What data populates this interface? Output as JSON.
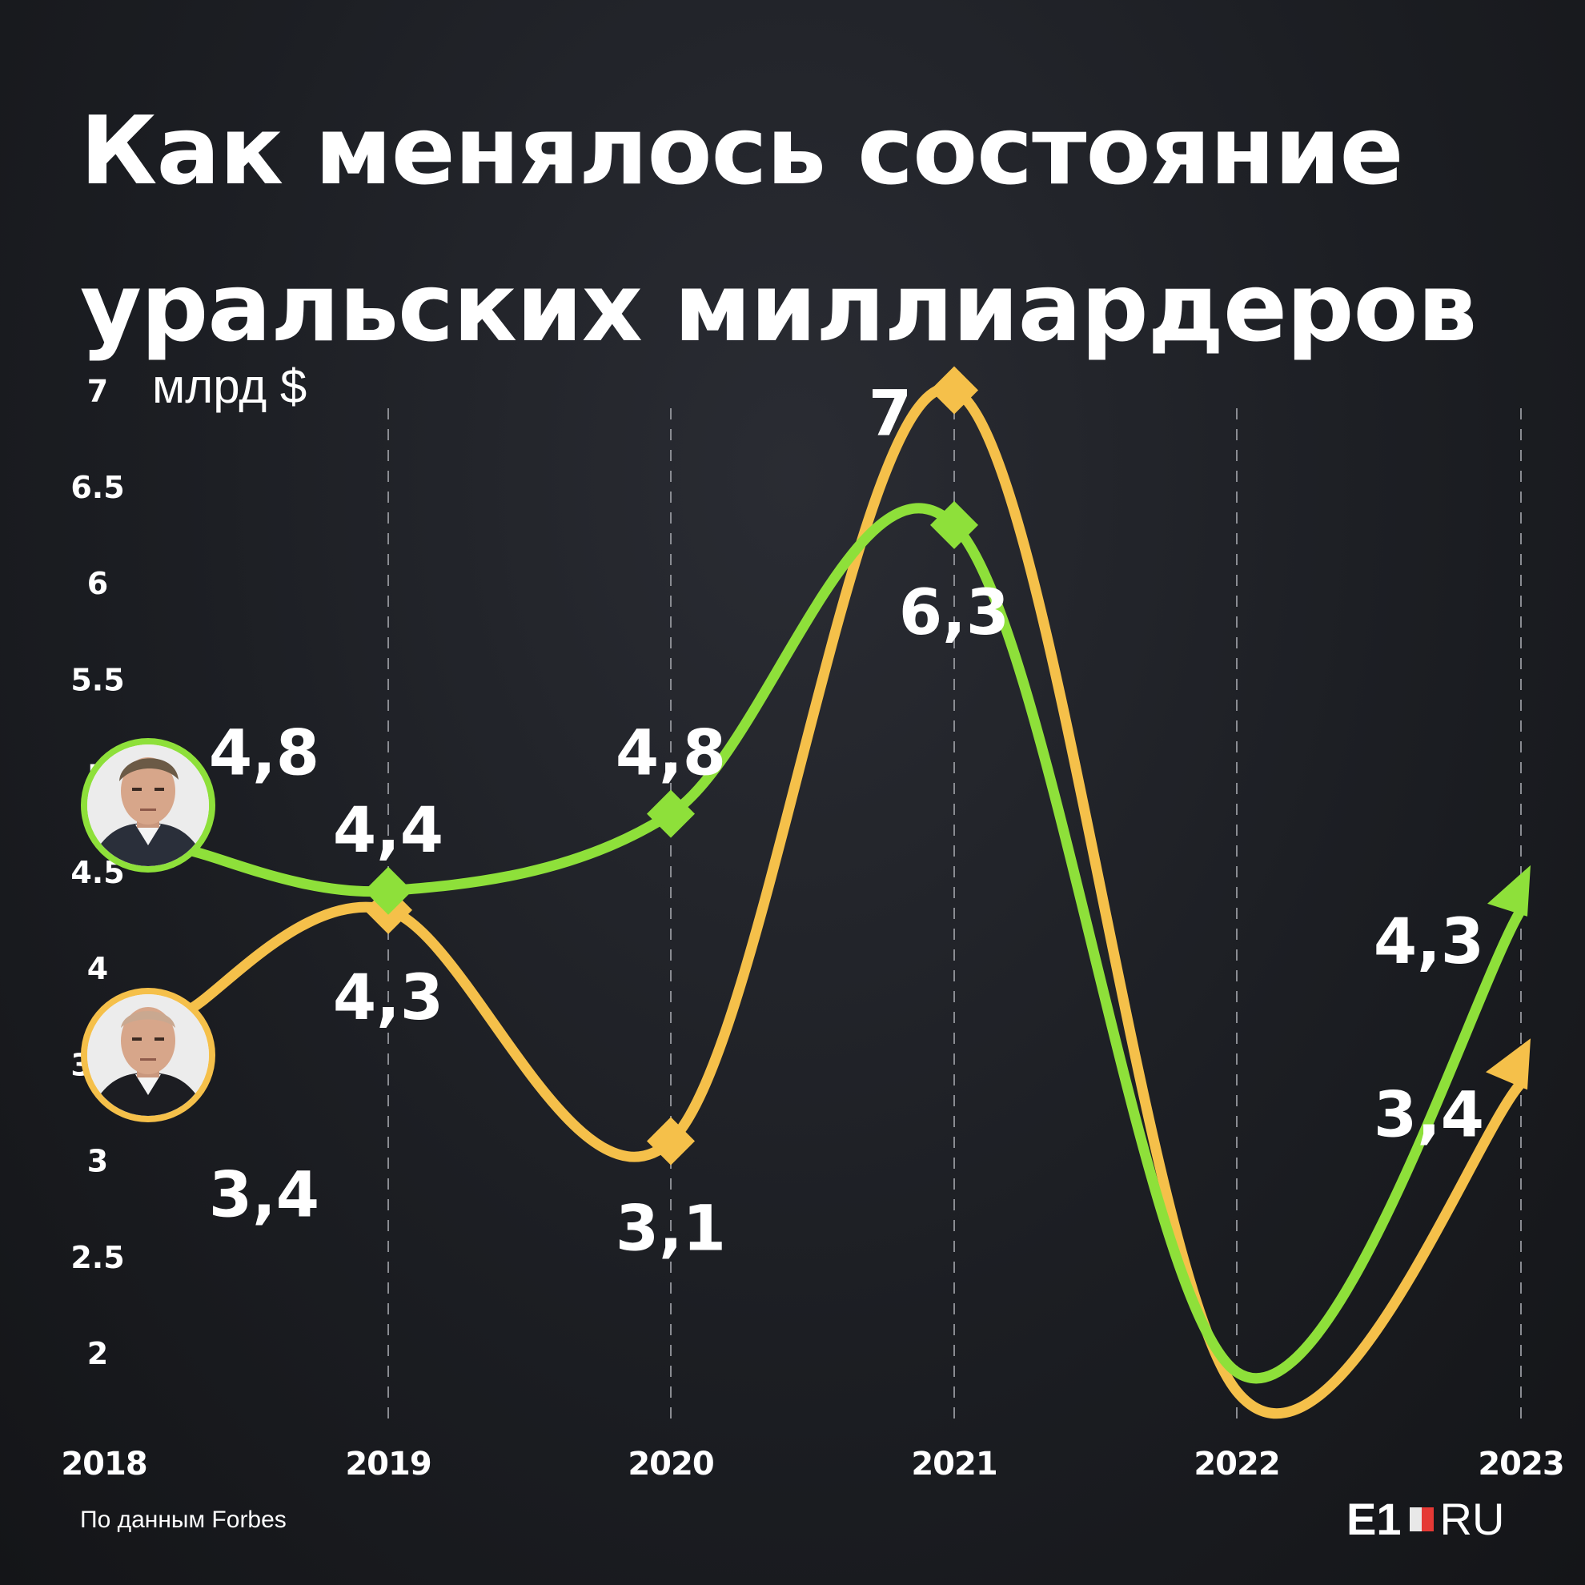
{
  "title": {
    "line1": "Как менялось состояние",
    "line2": "уральских миллиардеров"
  },
  "footer": {
    "source": "По данным Forbes",
    "logo_left": "E1",
    "logo_right": "RU"
  },
  "chart_data": {
    "type": "line",
    "ylabel": "млрд $",
    "x": [
      "2018",
      "2019",
      "2020",
      "2021",
      "2022",
      "2023"
    ],
    "ylim": [
      1.75,
      7.1
    ],
    "yticks": [
      "2",
      "2.5",
      "3",
      "3.5",
      "4",
      "4.5",
      "5",
      "5.5",
      "6",
      "6.5",
      "7"
    ],
    "grid": "vertical-dashed",
    "series": [
      {
        "color": "#8ee03a",
        "values": [
          4.8,
          4.4,
          4.8,
          6.3,
          1.9,
          4.3
        ],
        "labels": [
          "4,8",
          "4,4",
          "4,8",
          "6,3",
          "",
          "4,3"
        ],
        "avatar": "portrait-man-1"
      },
      {
        "color": "#f5c04a",
        "values": [
          3.4,
          4.3,
          3.1,
          7.0,
          1.8,
          3.4
        ],
        "labels": [
          "3,4",
          "4,3",
          "3,1",
          "7",
          "",
          "3,4"
        ],
        "avatar": "portrait-man-2"
      }
    ]
  }
}
